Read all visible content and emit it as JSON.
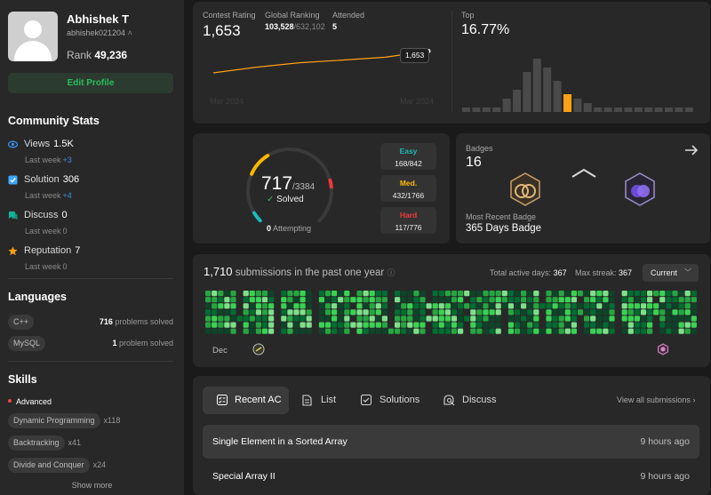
{
  "profile": {
    "name": "Abhishek T",
    "handle": "abhishek021204",
    "rank_label": "Rank",
    "rank_value": "49,236",
    "edit_label": "Edit Profile"
  },
  "community": {
    "title": "Community Stats",
    "items": [
      {
        "label": "Views",
        "value": "1.5K",
        "week": "Last week",
        "delta": "+3",
        "icon": "eye-icon",
        "color": "#3c8ee6"
      },
      {
        "label": "Solution",
        "value": "306",
        "week": "Last week",
        "delta": "+4",
        "icon": "check-square-icon",
        "color": "#3ea6ff"
      },
      {
        "label": "Discuss",
        "value": "0",
        "week": "Last week",
        "delta": "0",
        "icon": "chat-bubbles-icon",
        "color": "#13b39a"
      },
      {
        "label": "Reputation",
        "value": "7",
        "week": "Last week",
        "delta": "0",
        "icon": "star-icon",
        "color": "#ffa116"
      }
    ]
  },
  "languages": {
    "title": "Languages",
    "items": [
      {
        "name": "C++",
        "count": "716",
        "suffix": "problems solved"
      },
      {
        "name": "MySQL",
        "count": "1",
        "suffix": "problem solved"
      }
    ]
  },
  "skills": {
    "title": "Skills",
    "level": "Advanced",
    "items": [
      {
        "name": "Dynamic Programming",
        "count": "x118"
      },
      {
        "name": "Backtracking",
        "count": "x41"
      },
      {
        "name": "Divide and Conquer",
        "count": "x24"
      }
    ],
    "show_more": "Show more"
  },
  "contest": {
    "rating_label": "Contest Rating",
    "rating_value": "1,653",
    "global_label": "Global Ranking",
    "global_value": "103,528",
    "global_total": "/632,102",
    "attended_label": "Attended",
    "attended_value": "5",
    "tooltip": "1,653",
    "axis_start": "Mar 2024",
    "axis_end": "Mar 2024",
    "top_label": "Top",
    "top_value": "16.77%",
    "rating_series": [
      1500,
      1540,
      1571,
      1590,
      1610,
      1653
    ],
    "distribution": [
      1,
      1,
      1,
      1,
      3,
      5,
      9,
      12,
      10,
      7,
      4,
      3,
      2,
      1,
      1,
      1,
      1,
      1,
      1,
      1,
      1,
      1,
      1
    ],
    "highlight_index": 10,
    "accent": "#ffa116"
  },
  "solved": {
    "count": "717",
    "total": "/3384",
    "solved_label": "Solved",
    "attempting_count": "0",
    "attempting_label": "Attempting",
    "ring": {
      "easy": 168,
      "easy_total": 842,
      "medium": 432,
      "medium_total": 1766,
      "hard": 117,
      "hard_total": 776
    },
    "difficulties": [
      {
        "name": "Easy",
        "count": "168/842",
        "color": "#1cbaba"
      },
      {
        "name": "Med.",
        "count": "432/1766",
        "color": "#ffb700"
      },
      {
        "name": "Hard",
        "count": "117/776",
        "color": "#f63737"
      }
    ]
  },
  "badges": {
    "label": "Badges",
    "count": "16",
    "recent_label": "Most Recent Badge",
    "recent_name": "365 Days Badge"
  },
  "heatmap": {
    "count": "1,710",
    "title_suffix": "submissions in the past one year",
    "active_label": "Total active days:",
    "active_value": "367",
    "streak_label": "Max streak:",
    "streak_value": "367",
    "current_label": "Current",
    "first_month": "Dec"
  },
  "tabs": {
    "items": [
      {
        "label": "Recent AC",
        "icon": "list-check-icon"
      },
      {
        "label": "List",
        "icon": "document-icon"
      },
      {
        "label": "Solutions",
        "icon": "checkbox-icon"
      },
      {
        "label": "Discuss",
        "icon": "discuss-icon"
      }
    ],
    "view_all": "View all submissions"
  },
  "submissions": [
    {
      "title": "Single Element in a Sorted Array",
      "time": "9 hours ago"
    },
    {
      "title": "Special Array II",
      "time": "9 hours ago"
    }
  ]
}
